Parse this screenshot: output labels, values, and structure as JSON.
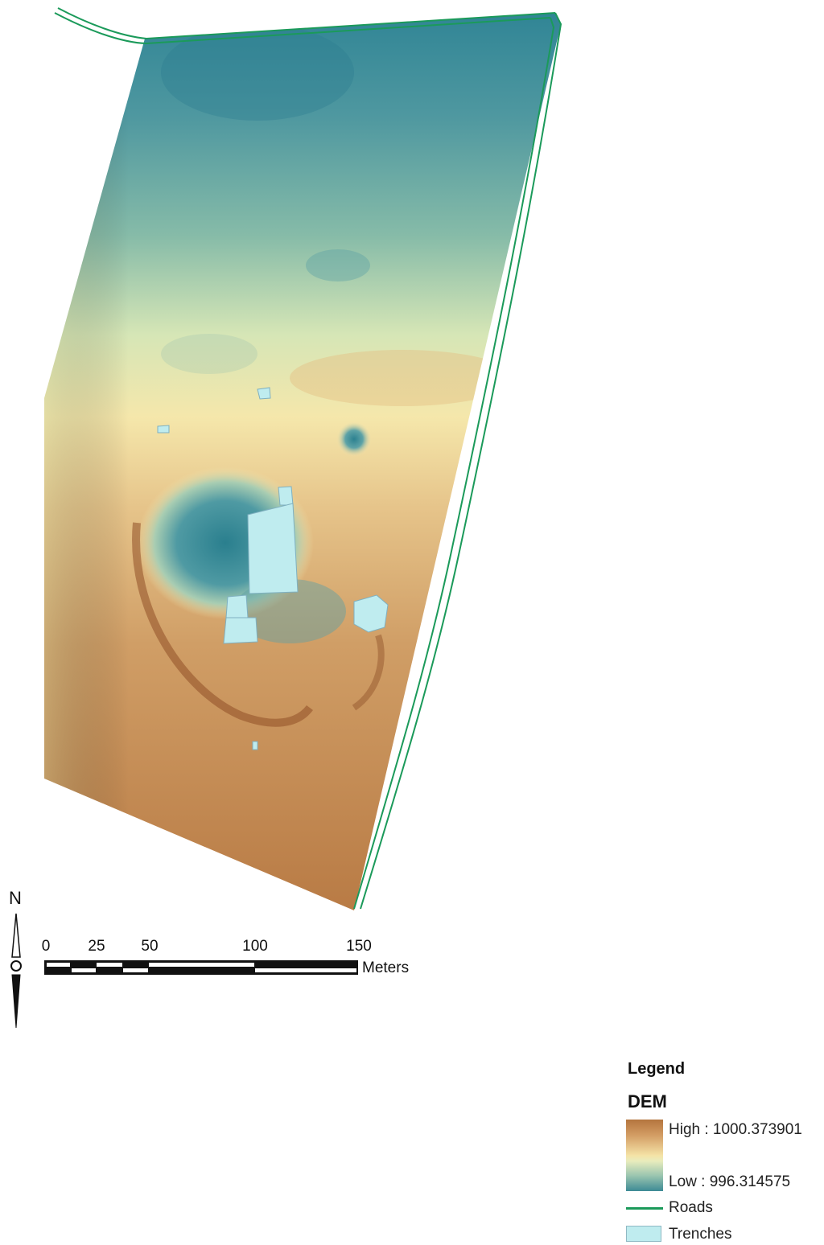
{
  "north_arrow": {
    "label": "N"
  },
  "scale_bar": {
    "ticks": [
      "0",
      "25",
      "50",
      "100",
      "150"
    ],
    "units": "Meters"
  },
  "legend": {
    "title": "Legend",
    "layer": "DEM",
    "high_label": "High : 1000.373901",
    "low_label": "Low : 996.314575",
    "roads_label": "Roads",
    "trenches_label": "Trenches"
  },
  "colors": {
    "dem_high": "#b4753e",
    "dem_mid": "#f4e2a6",
    "dem_low": "#3d8a95",
    "roads": "#1b9a5a",
    "trenches": "#bfecef"
  }
}
